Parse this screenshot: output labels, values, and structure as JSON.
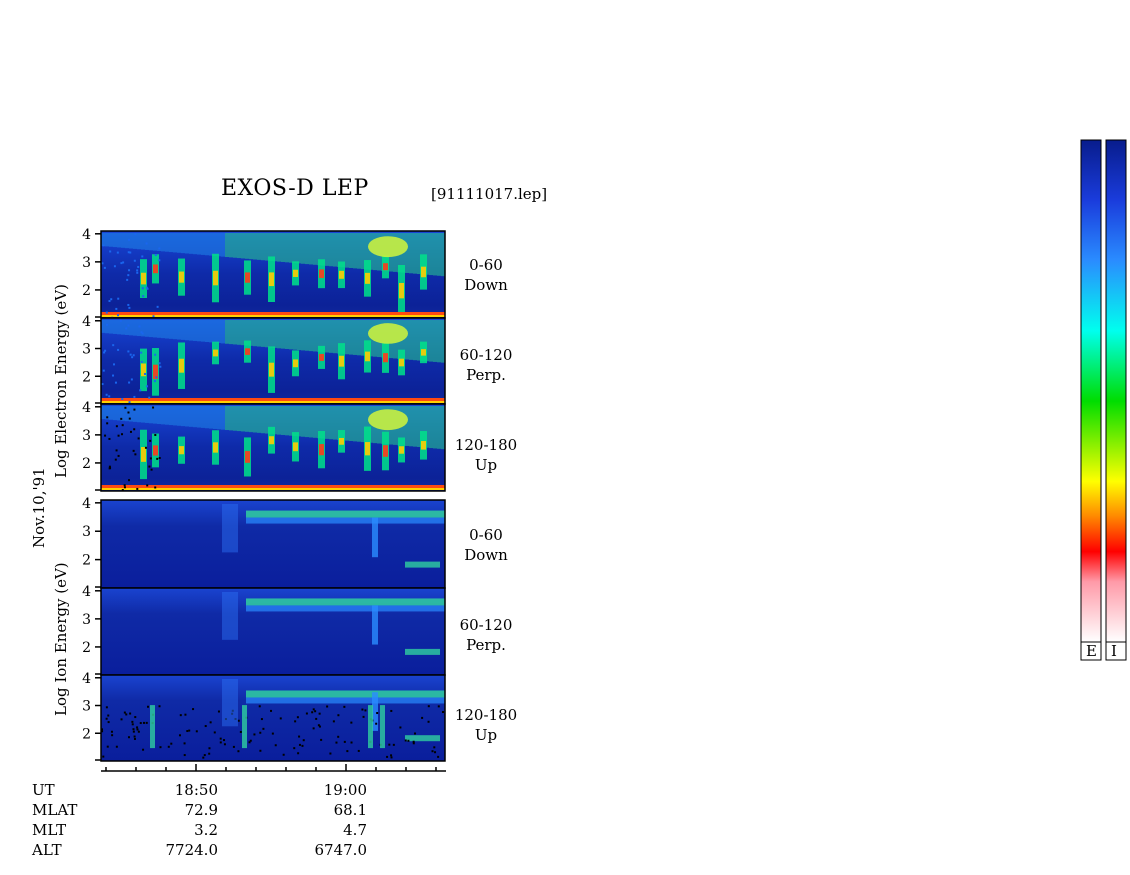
{
  "header": {
    "title": "EXOS-D LEP",
    "file": "[91111017.lep]"
  },
  "date_label": "Nov.10,'91",
  "electron_axis_label": "Log Electron Energy (eV)",
  "ion_axis_label": "Log Ion Energy (eV)",
  "panels": [
    {
      "species": "Electron",
      "angle": "0-60",
      "direction": "Down"
    },
    {
      "species": "Electron",
      "angle": "60-120",
      "direction": "Perp."
    },
    {
      "species": "Electron",
      "angle": "120-180",
      "direction": "Up"
    },
    {
      "species": "Ion",
      "angle": "0-60",
      "direction": "Down"
    },
    {
      "species": "Ion",
      "angle": "60-120",
      "direction": "Perp."
    },
    {
      "species": "Ion",
      "angle": "120-180",
      "direction": "Up"
    }
  ],
  "y_ticks": [
    "4",
    "3",
    "2"
  ],
  "orbit_table": {
    "row_labels": [
      "UT",
      "MLAT",
      "MLT",
      "ALT"
    ],
    "columns": [
      {
        "UT": "18:50",
        "MLAT": "72.9",
        "MLT": "3.2",
        "ALT": "7724.0"
      },
      {
        "UT": "19:00",
        "MLAT": "68.1",
        "MLT": "4.7",
        "ALT": "6747.0"
      }
    ]
  },
  "colorbars": [
    {
      "label": "E"
    },
    {
      "label": "I"
    }
  ],
  "colors": {
    "background": "#0a1e9c",
    "colormap": [
      "#ffffff",
      "#ff9aa8",
      "#ff0000",
      "#ff8800",
      "#ffff00",
      "#00dd00",
      "#00ffee",
      "#2a8cff",
      "#1a3cdc",
      "#081c8c"
    ]
  },
  "chart_data": {
    "type": "heatmap",
    "title": "EXOS-D LEP",
    "ylabel_electron": "Log Electron Energy (eV)",
    "ylabel_ion": "Log Ion Energy (eV)",
    "y_range_log_eV": [
      1,
      4.1
    ],
    "x_ticks_ut": [
      "18:50",
      "19:00"
    ],
    "grid": false,
    "colorbar_position": "right"
  }
}
